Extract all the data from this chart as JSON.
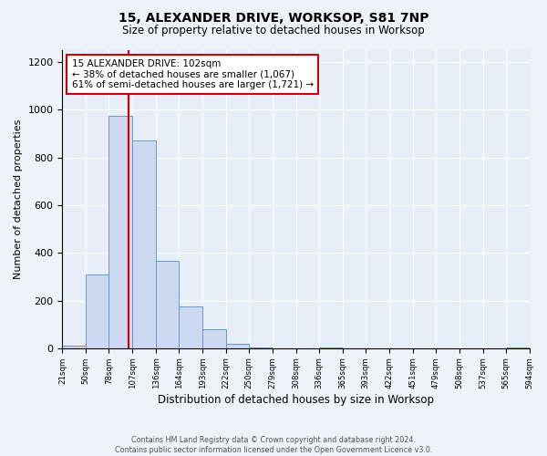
{
  "title": "15, ALEXANDER DRIVE, WORKSOP, S81 7NP",
  "subtitle": "Size of property relative to detached houses in Worksop",
  "xlabel": "Distribution of detached houses by size in Worksop",
  "ylabel": "Number of detached properties",
  "bin_edges": [
    21,
    50,
    78,
    107,
    136,
    164,
    193,
    222,
    250,
    279,
    308,
    336,
    365,
    393,
    422,
    451,
    479,
    508,
    537,
    565,
    594
  ],
  "bin_counts": [
    10,
    310,
    975,
    870,
    365,
    175,
    80,
    20,
    3,
    0,
    0,
    5,
    0,
    0,
    0,
    0,
    0,
    0,
    0,
    5
  ],
  "bar_facecolor": "#ccd9f0",
  "bar_edgecolor": "#6699cc",
  "property_size": 102,
  "vline_color": "#cc0000",
  "annotation_box_edgecolor": "#cc0000",
  "annotation_text_line1": "15 ALEXANDER DRIVE: 102sqm",
  "annotation_text_line2": "← 38% of detached houses are smaller (1,067)",
  "annotation_text_line3": "61% of semi-detached houses are larger (1,721) →",
  "footer_line1": "Contains HM Land Registry data © Crown copyright and database right 2024.",
  "footer_line2": "Contains public sector information licensed under the Open Government Licence v3.0.",
  "tick_labels": [
    "21sqm",
    "50sqm",
    "78sqm",
    "107sqm",
    "136sqm",
    "164sqm",
    "193sqm",
    "222sqm",
    "250sqm",
    "279sqm",
    "308sqm",
    "336sqm",
    "365sqm",
    "393sqm",
    "422sqm",
    "451sqm",
    "479sqm",
    "508sqm",
    "537sqm",
    "565sqm",
    "594sqm"
  ],
  "ylim": [
    0,
    1250
  ],
  "background_color": "#eef3fa",
  "plot_background": "#e8eef8",
  "grid_color": "#ffffff"
}
